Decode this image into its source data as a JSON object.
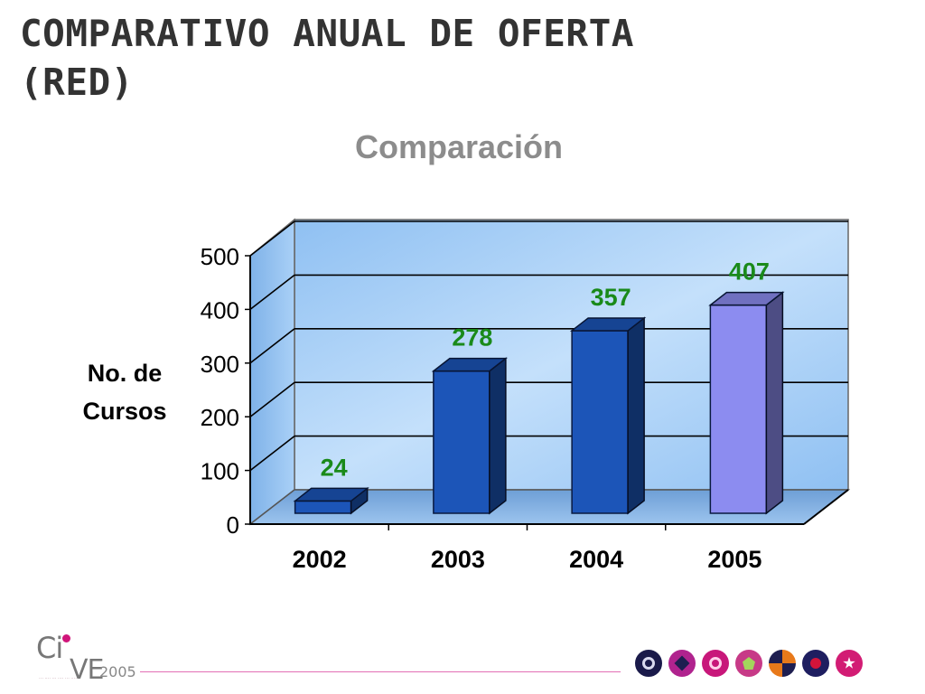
{
  "slide": {
    "title_line1": "COMPARATIVO ANUAL DE OFERTA",
    "title_line2": "(RED)"
  },
  "chart_data": {
    "type": "bar",
    "title": "Comparación",
    "ylabel_lines": [
      "No. de",
      "Cursos"
    ],
    "xlabel": "",
    "categories": [
      "2002",
      "2003",
      "2004",
      "2005"
    ],
    "series": [
      {
        "values": [
          24,
          278,
          357,
          407
        ]
      }
    ],
    "ylim": [
      0,
      500
    ],
    "yticks": [
      0,
      100,
      200,
      300,
      400,
      500
    ],
    "grid": true,
    "bar_colors": [
      "#1c55b8",
      "#1c55b8",
      "#1c55b8",
      "#8c8cf0"
    ],
    "data_label_color": "#1a8a1a",
    "plot_background": "#9fcbf5"
  },
  "footer": {
    "logo_text_ci": "Ci",
    "logo_text_ve": "VE",
    "logo_year": "2005",
    "icons": [
      "target-icon",
      "diamond-icon",
      "spiral-icon",
      "pentagon-icon",
      "checker-icon",
      "dot-icon",
      "star-icon"
    ]
  }
}
